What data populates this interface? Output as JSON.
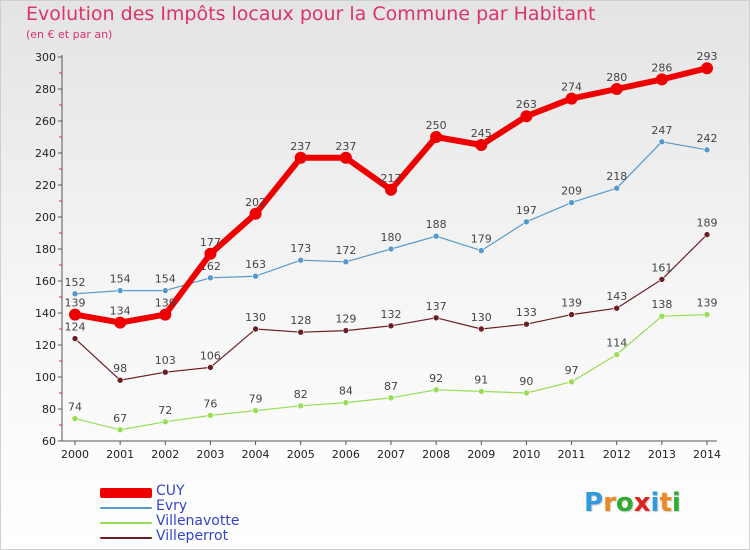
{
  "header": {
    "title": "Evolution des Impôts locaux pour la Commune par Habitant",
    "subtitle": "(en € et par an)"
  },
  "logo": {
    "letters": [
      "P",
      "r",
      "o",
      "x",
      "i",
      "t",
      "i"
    ],
    "colors": [
      "#3399dd",
      "#ee8822",
      "#33aa33",
      "#dd2222",
      "#3399dd",
      "#ee8822",
      "#33aa33"
    ]
  },
  "chart_data": {
    "type": "line",
    "x": [
      "2000",
      "2001",
      "2002",
      "2003",
      "2004",
      "2005",
      "2006",
      "2007",
      "2008",
      "2009",
      "2010",
      "2011",
      "2012",
      "2013",
      "2014"
    ],
    "ylim": [
      60,
      300
    ],
    "yticks": [
      60,
      80,
      100,
      120,
      140,
      160,
      180,
      200,
      220,
      240,
      260,
      280,
      300
    ],
    "grid": false,
    "legend_position": "bottom-left",
    "series": [
      {
        "name": "Villeperrot",
        "color": "#6b1e22",
        "width": 1.2,
        "marker": 3,
        "values": [
          124,
          98,
          103,
          106,
          130,
          128,
          129,
          132,
          137,
          130,
          133,
          139,
          143,
          161,
          189
        ]
      },
      {
        "name": "Villenavotte",
        "color": "#99dd55",
        "width": 1.2,
        "marker": 3,
        "values": [
          74,
          67,
          72,
          76,
          79,
          82,
          84,
          87,
          92,
          91,
          90,
          97,
          114,
          138,
          139
        ]
      },
      {
        "name": "Evry",
        "color": "#5599cc",
        "width": 1.2,
        "marker": 3,
        "values": [
          152,
          154,
          154,
          162,
          163,
          173,
          172,
          180,
          188,
          179,
          197,
          209,
          218,
          247,
          242
        ]
      },
      {
        "name": "CUY",
        "color": "#ee0000",
        "width": 6,
        "marker": 6,
        "values": [
          139,
          134,
          139,
          177,
          202,
          237,
          237,
          217,
          250,
          245,
          263,
          274,
          280,
          286,
          293
        ]
      }
    ]
  },
  "legend": [
    {
      "name": "CUY",
      "color": "#ee0000",
      "thickness": 10
    },
    {
      "name": "Evry",
      "color": "#5599cc",
      "thickness": 2
    },
    {
      "name": "Villenavotte",
      "color": "#99dd55",
      "thickness": 2
    },
    {
      "name": "Villeperrot",
      "color": "#6b1e22",
      "thickness": 2
    }
  ]
}
